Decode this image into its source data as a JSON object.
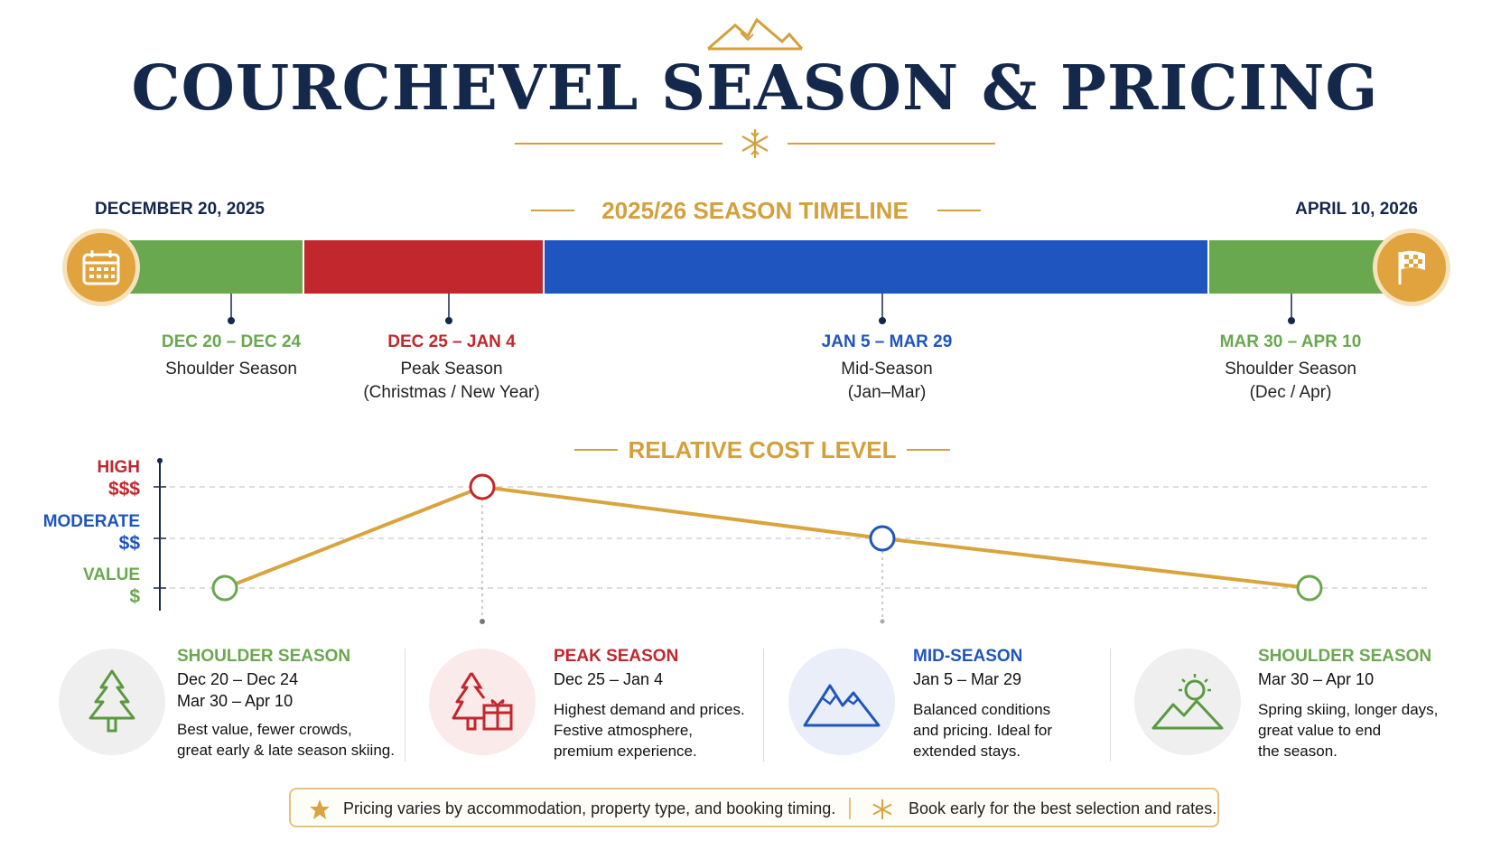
{
  "header": {
    "title": "COURCHEVEL SEASON & PRICING",
    "mountain_icon": "mountain-outline-icon",
    "snowflake_icon": "snowflake-icon"
  },
  "timeline": {
    "title": "2025/26 SEASON TIMELINE",
    "start_date": "DECEMBER 20, 2025",
    "end_date": "APRIL 10, 2026",
    "start_icon": "calendar-icon",
    "end_icon": "checkered-flag-icon",
    "phases": [
      {
        "range": "DEC 20 – DEC 24",
        "name": "Shoulder Season",
        "note": "",
        "color": "#6aa84f"
      },
      {
        "range": "DEC 25 – JAN 4",
        "name": "Peak Season",
        "note": "(Christmas / New Year)",
        "color": "#c1272d"
      },
      {
        "range": "JAN 5 – MAR 29",
        "name": "Mid-Season",
        "note": "(Jan–Mar)",
        "color": "#1f55be"
      },
      {
        "range": "MAR 30 – APR 10",
        "name": "Shoulder Season",
        "note": "(Dec / Apr)",
        "color": "#6aa84f"
      }
    ]
  },
  "cost": {
    "title": "RELATIVE COST LEVEL",
    "levels": [
      {
        "name": "HIGH",
        "symbol": "$$$",
        "color": "#c1272d"
      },
      {
        "name": "MODERATE",
        "symbol": "$$",
        "color": "#1f55be"
      },
      {
        "name": "VALUE",
        "symbol": "$",
        "color": "#6aa84f"
      }
    ],
    "points": [
      {
        "phase": "Shoulder Season (Dec)",
        "level": "VALUE",
        "color": "#6aa84f"
      },
      {
        "phase": "Peak Season",
        "level": "HIGH",
        "color": "#c1272d"
      },
      {
        "phase": "Mid-Season",
        "level": "MODERATE",
        "color": "#1f55be"
      },
      {
        "phase": "Shoulder Season (Apr)",
        "level": "VALUE",
        "color": "#6aa84f"
      }
    ],
    "line_color": "#d9a43e"
  },
  "cards": [
    {
      "title": "SHOULDER SEASON",
      "date1": "Dec 20 – Dec 24",
      "date2": "Mar 30 – Apr 10",
      "line1": "Best value, fewer crowds,",
      "line2": "great early & late season skiing.",
      "line3": "",
      "color": "#6aa84f",
      "icon": "pine-tree-icon"
    },
    {
      "title": "PEAK SEASON",
      "date1": "Dec 25 – Jan 4",
      "date2": "",
      "line1": "Highest demand and prices.",
      "line2": "Festive atmosphere,",
      "line3": "premium experience.",
      "color": "#c1272d",
      "icon": "christmas-tree-gift-icon"
    },
    {
      "title": "MID-SEASON",
      "date1": "Jan 5 – Mar 29",
      "date2": "",
      "line1": "Balanced conditions",
      "line2": "and pricing. Ideal for",
      "line3": "extended stays.",
      "color": "#1f55be",
      "icon": "mountain-peaks-icon"
    },
    {
      "title": "SHOULDER SEASON",
      "date1": "Mar 30 – Apr 10",
      "date2": "",
      "line1": "Spring skiing, longer days,",
      "line2": "great value to end",
      "line3": "the season.",
      "color": "#6aa84f",
      "icon": "sun-mountain-icon"
    }
  ],
  "footer": {
    "note1": "Pricing varies by accommodation, property type, and booking timing.",
    "note2": "Book early for the best selection and rates.",
    "star_icon": "star-icon",
    "snowflake_icon": "snowflake-icon"
  }
}
